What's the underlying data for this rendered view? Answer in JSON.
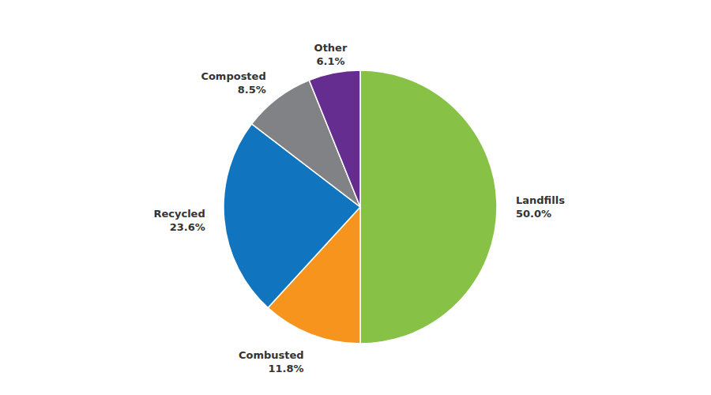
{
  "chart_data": {
    "type": "pie",
    "categories": [
      "Landfills",
      "Combusted",
      "Recycled",
      "Composted",
      "Other"
    ],
    "values": [
      50,
      11.8,
      23.6,
      8.5,
      6.1
    ],
    "value_labels": [
      "50.0%",
      "11.8%",
      "23.6%",
      "8.5%",
      "6.1%"
    ],
    "colors": [
      "#87c146",
      "#f7941e",
      "#1174be",
      "#818285",
      "#662d91"
    ],
    "data_labels": true
  }
}
